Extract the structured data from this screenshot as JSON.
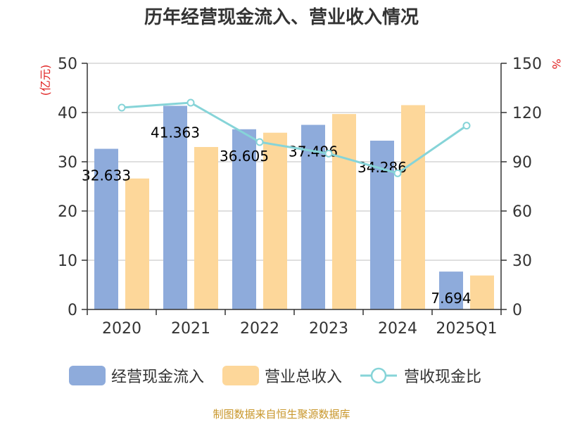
{
  "chart_data": {
    "type": "bar",
    "title": "历年经营现金流入、营业收入情况",
    "categories": [
      "2020",
      "2021",
      "2022",
      "2023",
      "2024",
      "2025Q1"
    ],
    "y_left_unit": "(亿元)",
    "y_right_unit": "%",
    "y_left_ticks": [
      "0",
      "10",
      "20",
      "30",
      "40",
      "50"
    ],
    "y_right_ticks": [
      "0",
      "30",
      "60",
      "90",
      "120",
      "150"
    ],
    "y_left_lim": [
      0,
      50
    ],
    "y_right_lim": [
      0,
      150
    ],
    "series": [
      {
        "name": "经营现金流入",
        "type": "bar",
        "axis": "left",
        "color": "#8eabdb",
        "values": [
          32.633,
          41.363,
          36.605,
          37.496,
          34.286,
          7.694
        ],
        "labels": [
          "32.633",
          "41.363",
          "36.605",
          "37.496",
          "34.286",
          "7.694"
        ]
      },
      {
        "name": "营业总收入",
        "type": "bar",
        "axis": "left",
        "color": "#fdd79a",
        "values": [
          26.6,
          33.0,
          35.9,
          39.7,
          41.5,
          6.9
        ]
      },
      {
        "name": "营收现金比",
        "type": "line",
        "axis": "right",
        "color": "#86d4d8",
        "values": [
          123,
          126,
          102,
          95,
          83,
          112
        ]
      }
    ],
    "grid": true,
    "legend_position": "bottom"
  },
  "footer": "制图数据来自恒生聚源数据库"
}
